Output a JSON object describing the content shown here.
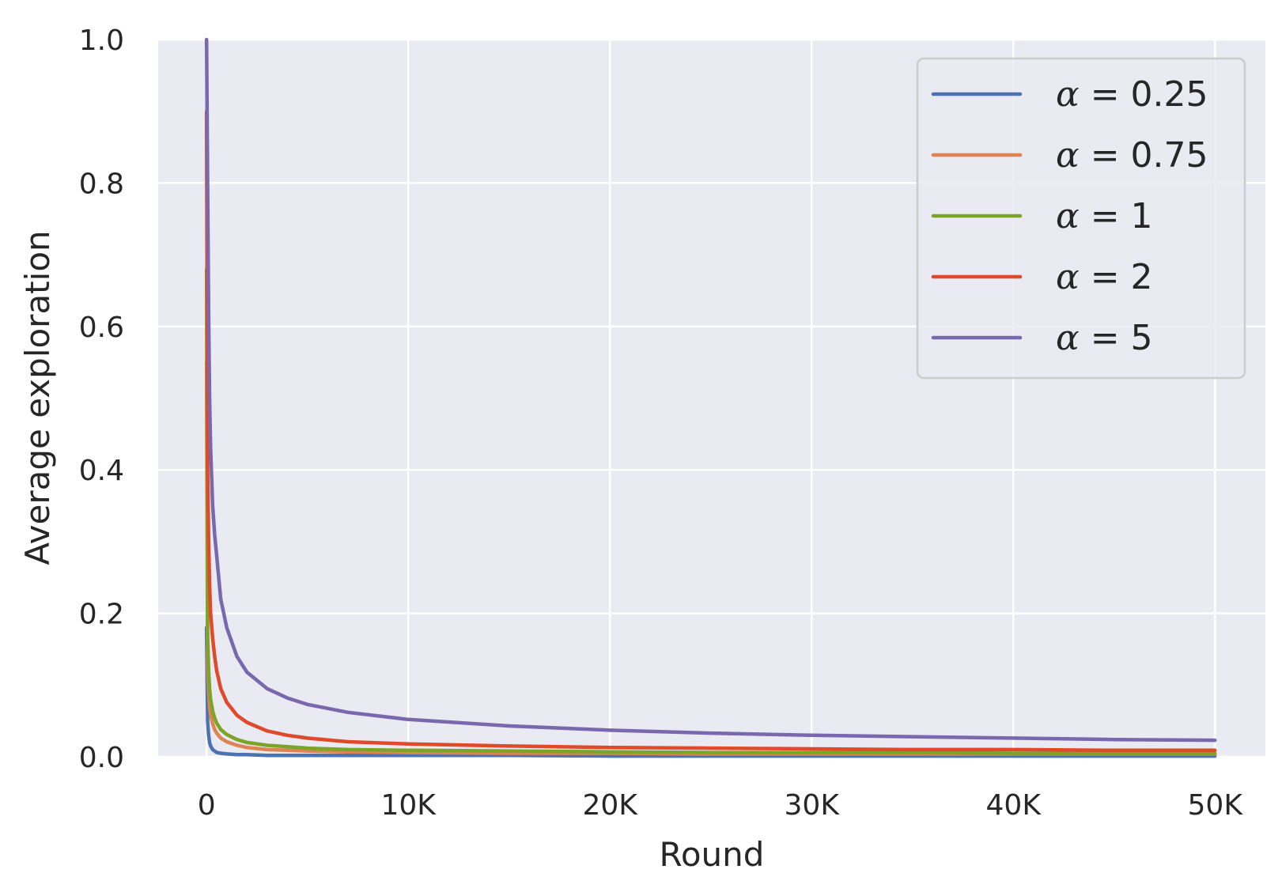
{
  "chart_data": {
    "type": "line",
    "title": "",
    "xlabel": "Round",
    "ylabel": "Average exploration",
    "xlim": [
      -2400,
      52500
    ],
    "ylim": [
      0,
      1
    ],
    "x_ticks": [
      0,
      10000,
      20000,
      30000,
      40000,
      50000
    ],
    "x_tick_labels": [
      "0",
      "10K",
      "20K",
      "30K",
      "40K",
      "50K"
    ],
    "y_ticks": [
      0,
      0.2,
      0.4,
      0.6,
      0.8,
      1.0
    ],
    "y_tick_labels": [
      "0.0",
      "0.2",
      "0.4",
      "0.6",
      "0.8",
      "1.0"
    ],
    "grid": true,
    "legend_position": "top-right",
    "x": [
      1,
      50,
      100,
      150,
      200,
      300,
      400,
      500,
      700,
      1000,
      1500,
      2000,
      3000,
      4000,
      5000,
      7000,
      10000,
      15000,
      20000,
      25000,
      30000,
      35000,
      40000,
      45000,
      50000
    ],
    "series": [
      {
        "name": "α = 0.25",
        "legend_symbol": "α",
        "legend_value": "= 0.25",
        "color": "#4c72b0",
        "values": [
          0.18,
          0.05,
          0.03,
          0.02,
          0.015,
          0.01,
          0.008,
          0.006,
          0.005,
          0.004,
          0.003,
          0.003,
          0.002,
          0.002,
          0.002,
          0.002,
          0.002,
          0.002,
          0.001,
          0.001,
          0.001,
          0.001,
          0.001,
          0.001,
          0.001
        ]
      },
      {
        "name": "α = 0.75",
        "legend_symbol": "α",
        "legend_value": "= 0.75",
        "color": "#dd8452",
        "values": [
          0.55,
          0.13,
          0.09,
          0.07,
          0.058,
          0.046,
          0.038,
          0.033,
          0.026,
          0.021,
          0.016,
          0.013,
          0.01,
          0.009,
          0.008,
          0.007,
          0.006,
          0.005,
          0.005,
          0.004,
          0.004,
          0.004,
          0.004,
          0.004,
          0.004
        ]
      },
      {
        "name": "α = 1",
        "legend_symbol": "α",
        "legend_value": "= 1",
        "color": "#7ba428",
        "values": [
          0.68,
          0.17,
          0.12,
          0.095,
          0.08,
          0.064,
          0.054,
          0.047,
          0.038,
          0.031,
          0.024,
          0.02,
          0.016,
          0.014,
          0.012,
          0.01,
          0.009,
          0.008,
          0.007,
          0.006,
          0.006,
          0.006,
          0.005,
          0.005,
          0.005
        ]
      },
      {
        "name": "α = 2",
        "legend_symbol": "α",
        "legend_value": "= 2",
        "color": "#e04a2a",
        "values": [
          0.9,
          0.4,
          0.3,
          0.24,
          0.2,
          0.165,
          0.14,
          0.12,
          0.095,
          0.076,
          0.058,
          0.048,
          0.036,
          0.03,
          0.026,
          0.021,
          0.018,
          0.015,
          0.013,
          0.012,
          0.011,
          0.01,
          0.01,
          0.009,
          0.009
        ]
      },
      {
        "name": "α = 5",
        "legend_symbol": "α",
        "legend_value": "= 5",
        "color": "#7a68ae",
        "values": [
          1.0,
          0.8,
          0.62,
          0.5,
          0.43,
          0.35,
          0.31,
          0.28,
          0.22,
          0.18,
          0.14,
          0.118,
          0.095,
          0.082,
          0.073,
          0.062,
          0.052,
          0.043,
          0.037,
          0.033,
          0.03,
          0.028,
          0.026,
          0.024,
          0.023
        ]
      }
    ]
  }
}
